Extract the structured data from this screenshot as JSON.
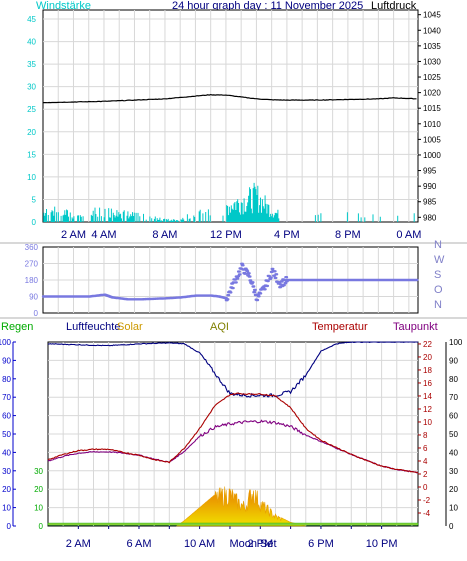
{
  "chart_data": [
    {
      "type": "line",
      "title": "24 hour graph day : 11 November 2025",
      "left_label": "Windstärke",
      "right_label": "Luftdruck",
      "x_ticks": [
        "2 AM",
        "4 AM",
        "8 AM",
        "12 PM",
        "4 PM",
        "8 PM",
        "0 AM"
      ],
      "x_tick_hours": [
        2,
        4,
        8,
        12,
        16,
        20,
        24
      ],
      "y_left_ticks": [
        0,
        5,
        10,
        15,
        20,
        25,
        30,
        35,
        40,
        45
      ],
      "y_left_lim": [
        0,
        47
      ],
      "y_right_ticks": [
        980,
        985,
        990,
        995,
        1000,
        1005,
        1010,
        1015,
        1020,
        1025,
        1030,
        1035,
        1040,
        1045
      ],
      "y_right_lim": [
        978.5,
        1046.5
      ],
      "x_lim_hours": [
        0,
        24.6
      ],
      "grid": true,
      "series": [
        {
          "name": "Luftdruck",
          "axis": "right",
          "color": "#000000",
          "x": [
            0,
            2,
            4,
            6,
            8,
            10,
            11,
            12,
            13,
            14,
            15,
            16,
            18,
            20,
            22,
            23,
            24.6
          ],
          "y": [
            1016.8,
            1017.0,
            1017.2,
            1017.6,
            1018.0,
            1018.9,
            1019.3,
            1019.2,
            1018.6,
            1018.0,
            1017.7,
            1017.6,
            1017.6,
            1017.8,
            1018.0,
            1018.3,
            1018.0
          ]
        },
        {
          "name": "Windstärke",
          "axis": "left",
          "color": "#00c8c8",
          "x": [
            0,
            1,
            2,
            3,
            4,
            5,
            6,
            7,
            8,
            9,
            10,
            11,
            12,
            12.5,
            13,
            13.5,
            14,
            14.5,
            15,
            15.5,
            16,
            17,
            18,
            20,
            22,
            24
          ],
          "y": [
            2,
            2.5,
            1.5,
            2,
            2.5,
            2,
            1.5,
            1,
            0.5,
            0.5,
            2,
            3,
            4,
            5,
            5.5,
            6,
            7,
            5,
            3,
            2,
            0.5,
            0.3,
            0.3,
            0.3,
            0.3,
            0.3
          ]
        }
      ]
    },
    {
      "type": "scatter",
      "title": "",
      "right_labels": [
        "N",
        "W",
        "S",
        "O",
        "N"
      ],
      "y_ticks": [
        0,
        90,
        180,
        270,
        360
      ],
      "y_lim": [
        0,
        360
      ],
      "x_lim_hours": [
        0,
        24.6
      ],
      "grid": true,
      "series": [
        {
          "name": "Windrichtung",
          "color": "#7878e0",
          "x": [
            0,
            3,
            4,
            4.5,
            5.5,
            6.5,
            8,
            9,
            10,
            11,
            11.5,
            12,
            12.5,
            13,
            13.5,
            14,
            14.5,
            15,
            15.5,
            16,
            17,
            19,
            21,
            23,
            24.6
          ],
          "y": [
            90,
            90,
            100,
            85,
            75,
            75,
            80,
            85,
            95,
            95,
            90,
            80,
            170,
            250,
            200,
            80,
            140,
            230,
            160,
            180,
            180,
            180,
            180,
            180,
            180
          ]
        }
      ]
    },
    {
      "type": "line",
      "title": "",
      "legend": [
        "Regen",
        "Luftfeuchte",
        "Solar",
        "AQI",
        "Temperatur",
        "Taupunkt"
      ],
      "legend_colors": [
        "#00aa00",
        "#000080",
        "#cc9900",
        "#808000",
        "#aa0000",
        "#800080"
      ],
      "overlay_label": "Moon Set",
      "x_ticks": [
        "2 AM",
        "4 AM",
        "6 AM",
        "8 AM",
        "10 AM",
        "12 PM",
        "2 PM",
        "4 PM",
        "6 PM",
        "8 PM",
        "10 PM"
      ],
      "x_tick_hours": [
        2,
        4,
        6,
        8,
        10,
        12,
        14,
        16,
        18,
        20,
        22
      ],
      "x_tick_labels_shown": [
        "2 AM",
        "6 AM",
        "10 AM",
        "2 PM",
        "6 PM",
        "10 PM"
      ],
      "x_tick_label_hours": [
        2,
        6,
        10,
        14,
        18,
        22
      ],
      "x_lim_hours": [
        0,
        24.4
      ],
      "y_left_ticks": [
        0,
        10,
        20,
        30,
        40,
        50,
        60,
        70,
        80,
        90,
        100
      ],
      "y_left_lim": [
        0,
        100
      ],
      "y_left2_ticks": [
        0,
        10,
        20,
        30
      ],
      "y_left2_lim": [
        0,
        100
      ],
      "y_right_ticks": [
        -4,
        -2,
        0,
        2,
        4,
        6,
        8,
        10,
        12,
        14,
        16,
        18,
        20,
        22
      ],
      "y_right_lim": [
        -6,
        22.3
      ],
      "y_right2_ticks": [
        0,
        10,
        20,
        30,
        40,
        50,
        60,
        70,
        80,
        90,
        100
      ],
      "y_right2_lim": [
        0,
        100
      ],
      "grid": true,
      "series": [
        {
          "name": "Luftfeuchte",
          "axis": "left",
          "color": "#000080",
          "x": [
            0,
            2,
            4,
            6,
            8,
            9,
            10,
            11,
            12,
            13,
            14,
            15,
            16,
            17,
            18,
            19,
            20,
            22,
            24.4
          ],
          "y": [
            99,
            98.5,
            98,
            99,
            99.5,
            99,
            94,
            83,
            72,
            71,
            71,
            71,
            73,
            82,
            95,
            99,
            100,
            100,
            100
          ]
        },
        {
          "name": "Temperatur",
          "axis": "right",
          "color": "#aa0000",
          "x": [
            0,
            1,
            2,
            3,
            4,
            5,
            6,
            7,
            8,
            9,
            10,
            11,
            12,
            12.5,
            13,
            14,
            15,
            16,
            17,
            18,
            20,
            22,
            23,
            24.4
          ],
          "y": [
            4.2,
            5.0,
            5.6,
            5.8,
            5.8,
            5.3,
            4.9,
            4.2,
            3.8,
            6.0,
            9.0,
            12.5,
            14.2,
            14.4,
            14.3,
            14.3,
            14.0,
            12.2,
            9.0,
            7.2,
            5.0,
            3.2,
            2.7,
            2.2
          ]
        },
        {
          "name": "Taupunkt",
          "axis": "right",
          "color": "#800080",
          "x": [
            0,
            1,
            2,
            3,
            4,
            5,
            6,
            7,
            8,
            9,
            10,
            11,
            12,
            13,
            14,
            15,
            16,
            17,
            18,
            20,
            22,
            23,
            24.4
          ],
          "y": [
            4.0,
            4.7,
            5.2,
            5.4,
            5.4,
            5.2,
            4.9,
            4.3,
            3.8,
            5.5,
            7.8,
            9.2,
            9.7,
            10.0,
            10.1,
            9.9,
            9.3,
            8.0,
            7.0,
            5.0,
            3.2,
            2.7,
            2.2
          ]
        },
        {
          "name": "Solar",
          "axis": "right2",
          "color": "#e8a000",
          "x": [
            8.5,
            9,
            10,
            11,
            11.5,
            12,
            12.5,
            13,
            13.5,
            14,
            14.5,
            15,
            15.5,
            16,
            16.5,
            17
          ],
          "y": [
            0,
            3,
            10,
            17,
            19,
            20,
            15,
            12,
            22,
            14,
            10,
            6,
            4,
            2,
            1,
            0
          ]
        },
        {
          "name": "Regen",
          "axis": "left2",
          "color": "#00aa00",
          "x": [
            0,
            24.4
          ],
          "y": [
            0.5,
            0.5
          ]
        }
      ]
    }
  ]
}
